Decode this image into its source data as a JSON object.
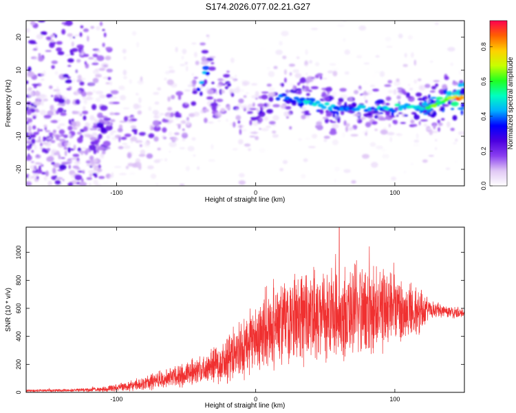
{
  "figure": {
    "title": "S174.2026.077.02.21.G27"
  },
  "chart_data": [
    {
      "type": "heatmap",
      "title": "S174.2026.077.02.21.G27",
      "xlabel": "Height of straight line (km)",
      "ylabel": "Frequency (Hz)",
      "xlim": [
        -165,
        150
      ],
      "ylim": [
        -25,
        25
      ],
      "xticks": [
        -100,
        0,
        100
      ],
      "xtick_labels": [
        "-100",
        "0",
        "100"
      ],
      "yticks": [
        -20,
        -10,
        0,
        10,
        20
      ],
      "ytick_labels": [
        "-20",
        "-10",
        "0",
        "10",
        "20"
      ],
      "colorbar": {
        "label": "Normalized spectral amplitude",
        "range": [
          0,
          0.95
        ],
        "ticks": [
          0,
          0.2,
          0.4,
          0.6,
          0.8
        ],
        "tick_labels": [
          "0.0",
          "0.2",
          "0.4",
          "0.6",
          "0.8"
        ],
        "colormap": [
          "#ffffff",
          "#e0c8f5",
          "#8a3ff0",
          "#4b00e0",
          "#0000ff",
          "#00b0ff",
          "#00ffc0",
          "#20ff20",
          "#c8ff00",
          "#ffd000",
          "#ff6000",
          "#ff0050"
        ]
      },
      "ridge": {
        "x": [
          -120,
          -100,
          -80,
          -60,
          -45,
          -40,
          -36,
          -32,
          -28,
          -20,
          -10,
          0,
          10,
          20,
          40,
          60,
          80,
          100,
          120,
          140,
          148
        ],
        "frequency": [
          -12,
          -5,
          -10,
          -4,
          -1,
          5,
          10,
          8,
          -2,
          5,
          -5,
          -4,
          0,
          2,
          0,
          -1.5,
          -1.5,
          -1,
          -1.5,
          1.5,
          1.5
        ],
        "amplitude": [
          0.2,
          0.25,
          0.2,
          0.2,
          0.25,
          0.35,
          0.45,
          0.3,
          0.3,
          0.3,
          0.25,
          0.25,
          0.3,
          0.35,
          0.45,
          0.4,
          0.4,
          0.45,
          0.5,
          0.7,
          0.85
        ]
      }
    },
    {
      "type": "line",
      "xlabel": "Height of straight line (km)",
      "ylabel": "SNR (10 * v/v)",
      "xlim": [
        -165,
        150
      ],
      "ylim": [
        0,
        1180
      ],
      "xticks": [
        -100,
        0,
        100
      ],
      "xtick_labels": [
        "-100",
        "0",
        "100"
      ],
      "yticks": [
        0,
        200,
        400,
        600,
        800,
        1000
      ],
      "ytick_labels": [
        "0",
        "200",
        "400",
        "600",
        "800",
        "1000"
      ],
      "color": "#f03030",
      "envelope": {
        "x": [
          -165,
          -130,
          -110,
          -90,
          -70,
          -50,
          -40,
          -30,
          -20,
          -10,
          0,
          10,
          20,
          30,
          40,
          50,
          60,
          70,
          80,
          90,
          100,
          110,
          120,
          125,
          130,
          140,
          150
        ],
        "mean": [
          12,
          15,
          22,
          45,
          85,
          130,
          160,
          190,
          240,
          300,
          380,
          450,
          500,
          520,
          540,
          555,
          565,
          575,
          585,
          595,
          590,
          585,
          575,
          590,
          585,
          575,
          570
        ],
        "spread": [
          8,
          10,
          18,
          35,
          60,
          85,
          100,
          120,
          160,
          200,
          240,
          270,
          290,
          300,
          320,
          330,
          330,
          320,
          300,
          280,
          240,
          200,
          150,
          70,
          50,
          40,
          35
        ]
      },
      "peak": {
        "x": 60,
        "y": 1180
      }
    }
  ]
}
